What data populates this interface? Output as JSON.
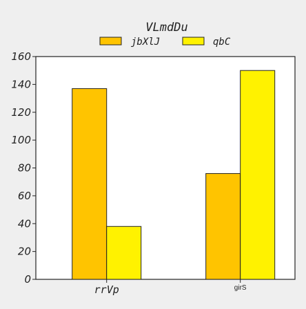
{
  "chart_data": {
    "type": "bar",
    "title": "VLmdDu",
    "categories": [
      "rrVp",
      "girS"
    ],
    "series": [
      {
        "name": "jbXlJ",
        "values": [
          137,
          76
        ],
        "color": "#ffc400"
      },
      {
        "name": "qbC",
        "values": [
          38,
          150
        ],
        "color": "#fff200"
      }
    ],
    "xlabel": "",
    "ylabel": "",
    "ylim": [
      0,
      160
    ],
    "yticks": [
      0,
      20,
      40,
      60,
      80,
      100,
      120,
      140,
      160
    ],
    "legend_position": "top-center",
    "grid": false
  }
}
